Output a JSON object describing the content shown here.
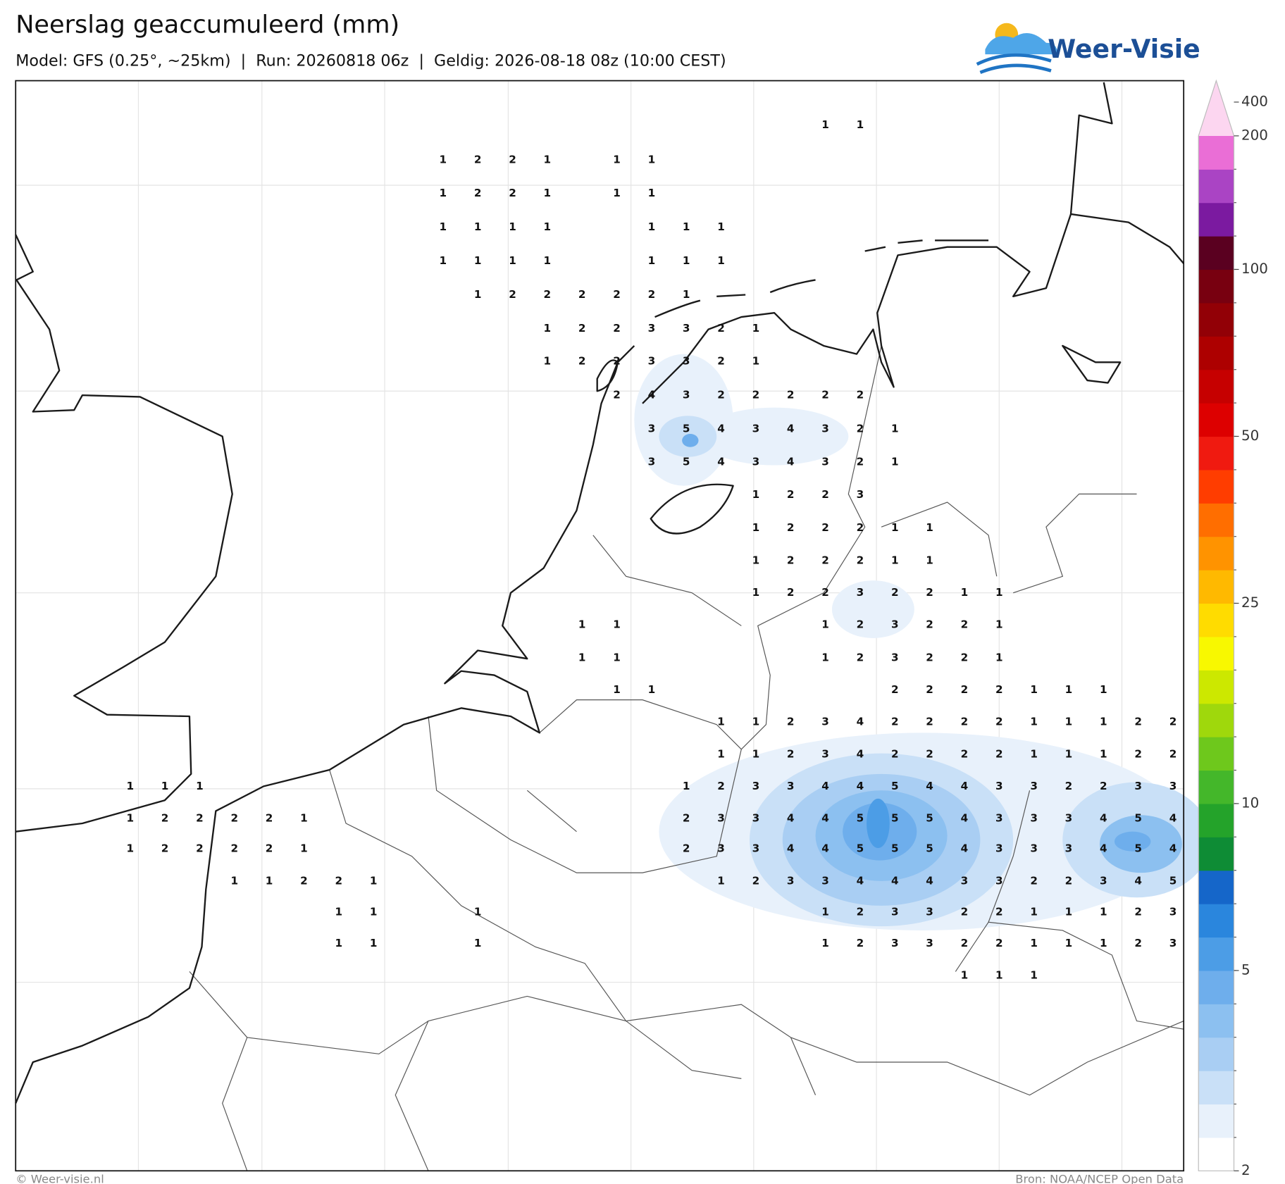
{
  "header": {
    "title": "Neerslag geaccumuleerd (mm)",
    "subtitle": "Model: GFS (0.25°, ~25km)  |  Run: 20260818 06z  |  Geldig: 2026-08-18 08z (10:00 CEST)",
    "logo": "Weer-Visie"
  },
  "map": {
    "values": [
      [
        null,
        null,
        null,
        null,
        null,
        null,
        null,
        null,
        null,
        null,
        null,
        null,
        null,
        null,
        null,
        null,
        null,
        null,
        null,
        null,
        1,
        1,
        null,
        null,
        null,
        null,
        null,
        null,
        null,
        null,
        null
      ],
      [
        null,
        null,
        null,
        null,
        null,
        null,
        null,
        null,
        null,
        1,
        2,
        2,
        1,
        null,
        1,
        1,
        null,
        null,
        null,
        null,
        null,
        null,
        null,
        null,
        null,
        null,
        null,
        null,
        null,
        null,
        null
      ],
      [
        null,
        null,
        null,
        null,
        null,
        null,
        null,
        null,
        null,
        1,
        2,
        2,
        1,
        null,
        1,
        1,
        null,
        null,
        null,
        null,
        null,
        null,
        null,
        null,
        null,
        null,
        null,
        null,
        null,
        null,
        null
      ],
      [
        null,
        null,
        null,
        null,
        null,
        null,
        null,
        null,
        null,
        1,
        1,
        1,
        1,
        null,
        null,
        1,
        1,
        1,
        null,
        null,
        null,
        null,
        null,
        null,
        null,
        null,
        null,
        null,
        null,
        null,
        null
      ],
      [
        null,
        null,
        null,
        null,
        null,
        null,
        null,
        null,
        null,
        1,
        1,
        1,
        1,
        null,
        null,
        1,
        1,
        1,
        null,
        null,
        null,
        null,
        null,
        null,
        null,
        null,
        null,
        null,
        null,
        null,
        null
      ],
      [
        null,
        null,
        null,
        null,
        null,
        null,
        null,
        null,
        null,
        null,
        1,
        2,
        2,
        2,
        2,
        2,
        1,
        null,
        null,
        null,
        null,
        null,
        null,
        null,
        null,
        null,
        null,
        null,
        null,
        null,
        null
      ],
      [
        null,
        null,
        null,
        null,
        null,
        null,
        null,
        null,
        null,
        null,
        null,
        null,
        1,
        2,
        2,
        3,
        3,
        2,
        1,
        null,
        null,
        null,
        null,
        null,
        null,
        null,
        null,
        null,
        null,
        null,
        null
      ],
      [
        null,
        null,
        null,
        null,
        null,
        null,
        null,
        null,
        null,
        null,
        null,
        null,
        1,
        2,
        2,
        3,
        3,
        2,
        1,
        null,
        null,
        null,
        null,
        null,
        null,
        null,
        null,
        null,
        null,
        null,
        null
      ],
      [
        null,
        null,
        null,
        null,
        null,
        null,
        null,
        null,
        null,
        null,
        null,
        null,
        null,
        null,
        2,
        4,
        3,
        2,
        2,
        2,
        2,
        2,
        null,
        null,
        null,
        null,
        null,
        null,
        null,
        null,
        null
      ],
      [
        null,
        null,
        null,
        null,
        null,
        null,
        null,
        null,
        null,
        null,
        null,
        null,
        null,
        null,
        null,
        3,
        5,
        4,
        3,
        4,
        3,
        2,
        1,
        null,
        null,
        null,
        null,
        null,
        null,
        null,
        null
      ],
      [
        null,
        null,
        null,
        null,
        null,
        null,
        null,
        null,
        null,
        null,
        null,
        null,
        null,
        null,
        null,
        3,
        5,
        4,
        3,
        4,
        3,
        2,
        1,
        null,
        null,
        null,
        null,
        null,
        null,
        null,
        null
      ],
      [
        null,
        null,
        null,
        null,
        null,
        null,
        null,
        null,
        null,
        null,
        null,
        null,
        null,
        null,
        null,
        null,
        null,
        null,
        1,
        2,
        2,
        3,
        null,
        null,
        null,
        null,
        null,
        null,
        null,
        null,
        null
      ],
      [
        null,
        null,
        null,
        null,
        null,
        null,
        null,
        null,
        null,
        null,
        null,
        null,
        null,
        null,
        null,
        null,
        null,
        null,
        1,
        2,
        2,
        2,
        1,
        1,
        null,
        null,
        null,
        null,
        null,
        null,
        null
      ],
      [
        null,
        null,
        null,
        null,
        null,
        null,
        null,
        null,
        null,
        null,
        null,
        null,
        null,
        null,
        null,
        null,
        null,
        null,
        1,
        2,
        2,
        2,
        1,
        1,
        null,
        null,
        null,
        null,
        null,
        null,
        null
      ],
      [
        null,
        null,
        null,
        null,
        null,
        null,
        null,
        null,
        null,
        null,
        null,
        null,
        null,
        null,
        null,
        null,
        null,
        null,
        1,
        2,
        2,
        3,
        2,
        2,
        1,
        1,
        null,
        null,
        null,
        null,
        null
      ],
      [
        null,
        null,
        null,
        null,
        null,
        null,
        null,
        null,
        null,
        null,
        null,
        null,
        null,
        1,
        1,
        null,
        null,
        null,
        null,
        null,
        1,
        2,
        3,
        2,
        2,
        1,
        null,
        null,
        null,
        null,
        null
      ],
      [
        null,
        null,
        null,
        null,
        null,
        null,
        null,
        null,
        null,
        null,
        null,
        null,
        null,
        1,
        1,
        null,
        null,
        null,
        null,
        null,
        1,
        2,
        3,
        2,
        2,
        1,
        null,
        null,
        null,
        null,
        null
      ],
      [
        null,
        null,
        null,
        null,
        null,
        null,
        null,
        null,
        null,
        null,
        null,
        null,
        null,
        null,
        1,
        1,
        null,
        null,
        null,
        null,
        null,
        null,
        2,
        2,
        2,
        2,
        1,
        1,
        1,
        null,
        null
      ],
      [
        null,
        null,
        null,
        null,
        null,
        null,
        null,
        null,
        null,
        null,
        null,
        null,
        null,
        null,
        null,
        null,
        null,
        1,
        1,
        2,
        3,
        4,
        2,
        2,
        2,
        2,
        1,
        1,
        1,
        2,
        2
      ],
      [
        null,
        null,
        null,
        null,
        null,
        null,
        null,
        null,
        null,
        null,
        null,
        null,
        null,
        null,
        null,
        null,
        null,
        1,
        1,
        2,
        3,
        4,
        2,
        2,
        2,
        2,
        1,
        1,
        1,
        2,
        2
      ],
      [
        1,
        1,
        1,
        null,
        null,
        null,
        null,
        null,
        null,
        null,
        null,
        null,
        null,
        null,
        null,
        null,
        1,
        2,
        3,
        3,
        4,
        4,
        5,
        4,
        4,
        3,
        3,
        2,
        2,
        3,
        3
      ],
      [
        1,
        2,
        2,
        2,
        2,
        1,
        null,
        null,
        null,
        null,
        null,
        null,
        null,
        null,
        null,
        null,
        2,
        3,
        3,
        4,
        4,
        5,
        5,
        5,
        4,
        3,
        3,
        3,
        4,
        5,
        4
      ],
      [
        1,
        2,
        2,
        2,
        2,
        1,
        null,
        null,
        null,
        null,
        null,
        null,
        null,
        null,
        null,
        null,
        2,
        3,
        3,
        4,
        4,
        5,
        5,
        5,
        4,
        3,
        3,
        3,
        4,
        5,
        4
      ],
      [
        null,
        null,
        null,
        1,
        1,
        2,
        2,
        1,
        null,
        null,
        null,
        null,
        null,
        null,
        null,
        null,
        null,
        1,
        2,
        3,
        3,
        4,
        4,
        4,
        3,
        3,
        2,
        2,
        3,
        4,
        5
      ],
      [
        null,
        null,
        null,
        null,
        null,
        null,
        1,
        1,
        null,
        null,
        1,
        null,
        null,
        null,
        null,
        null,
        null,
        null,
        null,
        null,
        1,
        2,
        3,
        3,
        2,
        2,
        1,
        1,
        1,
        2,
        3
      ],
      [
        null,
        null,
        null,
        null,
        null,
        null,
        1,
        1,
        null,
        null,
        1,
        null,
        null,
        null,
        null,
        null,
        null,
        null,
        null,
        null,
        1,
        2,
        3,
        3,
        2,
        2,
        1,
        1,
        1,
        2,
        3
      ],
      [
        null,
        null,
        null,
        null,
        null,
        null,
        null,
        null,
        null,
        null,
        null,
        null,
        null,
        null,
        null,
        null,
        null,
        null,
        null,
        null,
        null,
        null,
        null,
        null,
        1,
        1,
        1,
        null,
        null,
        null,
        null
      ]
    ]
  },
  "colorbar": {
    "ticks": [
      2,
      5,
      10,
      25,
      50,
      100,
      200,
      400
    ],
    "colors": [
      "#ffffff",
      "#e8f1fb",
      "#c9e0f7",
      "#a9cef3",
      "#8cc0f0",
      "#6eaeec",
      "#4c9de6",
      "#2a86dd",
      "#1566c9",
      "#0e8c35",
      "#24a32a",
      "#44b72a",
      "#6ec81c",
      "#9fd80c",
      "#cce800",
      "#f8f800",
      "#ffdc00",
      "#ffb900",
      "#ff9300",
      "#ff6e00",
      "#ff3d00",
      "#f01a10",
      "#dd0000",
      "#c60000",
      "#ad0000",
      "#920006",
      "#780010",
      "#5a0020",
      "#7b1aa0",
      "#aa44c4",
      "#ea6ed6",
      "#fcd6f0"
    ]
  },
  "footer": {
    "left": "© Weer-visie.nl",
    "right": "Bron: NOAA/NCEP Open Data"
  }
}
